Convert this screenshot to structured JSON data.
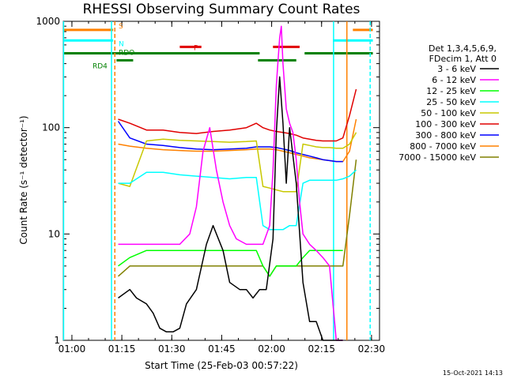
{
  "chart_data": {
    "type": "line",
    "title": "RHESSI Observing Summary Count Rates",
    "xlabel": "Start Time (25-Feb-03 00:57:22)",
    "ylabel": "Count Rate (s⁻¹ detector⁻¹)",
    "y_scale": "log",
    "ylim": [
      1,
      1000
    ],
    "xlim_minutes_after_start": [
      0,
      95
    ],
    "x_ticks": [
      {
        "label": "01:00",
        "minute": 2.6
      },
      {
        "label": "01:15",
        "minute": 17.6
      },
      {
        "label": "01:30",
        "minute": 32.6
      },
      {
        "label": "01:45",
        "minute": 47.6
      },
      {
        "label": "02:00",
        "minute": 62.6
      },
      {
        "label": "02:15",
        "minute": 77.6
      },
      {
        "label": "02:30",
        "minute": 92.6
      }
    ],
    "y_ticks": [
      "1",
      "10",
      "100",
      "1000"
    ],
    "legend_header": [
      "Det 1,3,4,5,6,9,",
      "FDecim 1, Att 0"
    ],
    "series": [
      {
        "name": "3 - 6 keV",
        "color": "#000000",
        "x": [
          16.5,
          20,
          22,
          25,
          27,
          29,
          31,
          33,
          35,
          37,
          40,
          43,
          45,
          48,
          50,
          53,
          55,
          57,
          59,
          61,
          63,
          64,
          65,
          66,
          67,
          68,
          70,
          72,
          74,
          76,
          78,
          80,
          82,
          84
        ],
        "y": [
          2.5,
          3,
          2.5,
          2.2,
          1.8,
          1.3,
          1.2,
          1.2,
          1.3,
          2.2,
          3,
          8,
          12,
          7,
          3.5,
          3,
          3,
          2.5,
          3,
          3,
          9,
          90,
          300,
          110,
          30,
          100,
          30,
          3.5,
          1.5,
          1.5,
          1,
          1,
          1,
          1
        ]
      },
      {
        "name": "6 - 12 keV",
        "color": "#ff00ff",
        "x": [
          16.5,
          20,
          25,
          30,
          35,
          38,
          40,
          42,
          44,
          46,
          48,
          50,
          52,
          55,
          58,
          60,
          62,
          63,
          64,
          65,
          65.5,
          66,
          67,
          68,
          69,
          70,
          71,
          72,
          74,
          76,
          78,
          80,
          82,
          84
        ],
        "y": [
          8,
          8,
          8,
          8,
          8,
          10,
          18,
          60,
          100,
          40,
          20,
          12,
          9,
          8,
          8,
          8,
          12,
          40,
          250,
          700,
          900,
          400,
          150,
          110,
          90,
          50,
          20,
          10,
          8,
          7,
          6,
          5,
          1,
          1
        ]
      },
      {
        "name": "12 - 25 keV",
        "color": "#00ff00",
        "x": [
          16.5,
          20,
          25,
          30,
          35,
          40,
          45,
          50,
          55,
          58,
          60,
          62,
          64,
          66,
          68,
          70,
          72,
          74,
          76,
          78,
          80,
          82,
          84
        ],
        "y": [
          5,
          6,
          7,
          7,
          7,
          7,
          7,
          7,
          7,
          7,
          5,
          4,
          5,
          5,
          5,
          5,
          6,
          7,
          7,
          7,
          7,
          7,
          7
        ]
      },
      {
        "name": "25 - 50 keV",
        "color": "#00ffff",
        "x": [
          16.5,
          20,
          25,
          30,
          35,
          40,
          45,
          50,
          55,
          58,
          60,
          62,
          64,
          66,
          68,
          70,
          72,
          74,
          76,
          78,
          80,
          82,
          84,
          86,
          88
        ],
        "y": [
          30,
          30,
          38,
          38,
          36,
          35,
          34,
          33,
          34,
          34,
          12,
          11,
          11,
          11,
          12,
          12,
          30,
          32,
          32,
          32,
          32,
          32,
          33,
          35,
          40
        ]
      },
      {
        "name": "50 - 100 keV",
        "color": "#c8c800",
        "x": [
          16.5,
          20,
          25,
          30,
          35,
          40,
          45,
          50,
          55,
          58,
          60,
          62,
          64,
          66,
          68,
          70,
          72,
          74,
          76,
          78,
          80,
          82,
          84,
          86,
          88
        ],
        "y": [
          30,
          28,
          75,
          78,
          76,
          75,
          74,
          73,
          74,
          75,
          28,
          27,
          26,
          25,
          25,
          25,
          70,
          68,
          66,
          65,
          65,
          64,
          64,
          70,
          90
        ]
      },
      {
        "name": "100 - 300 keV",
        "color": "#e00000",
        "x": [
          16.5,
          20,
          25,
          30,
          35,
          40,
          45,
          50,
          55,
          58,
          60,
          62,
          64,
          66,
          68,
          70,
          72,
          74,
          76,
          78,
          80,
          82,
          84,
          86,
          88
        ],
        "y": [
          120,
          110,
          95,
          95,
          90,
          88,
          92,
          95,
          100,
          110,
          100,
          95,
          92,
          90,
          88,
          85,
          80,
          78,
          76,
          75,
          75,
          75,
          80,
          130,
          230
        ]
      },
      {
        "name": "300 - 800 keV",
        "color": "#0000ff",
        "x": [
          16.5,
          20,
          25,
          30,
          35,
          40,
          45,
          50,
          55,
          58,
          60,
          62,
          64,
          66,
          68,
          70,
          72,
          74,
          76,
          78,
          80,
          82,
          84
        ],
        "y": [
          115,
          80,
          70,
          68,
          65,
          63,
          62,
          63,
          64,
          66,
          66,
          66,
          65,
          63,
          61,
          58,
          56,
          54,
          52,
          50,
          49,
          48,
          48
        ]
      },
      {
        "name": "800 - 7000 keV",
        "color": "#ff8000",
        "x": [
          16.5,
          20,
          25,
          30,
          35,
          40,
          45,
          50,
          55,
          58,
          60,
          62,
          64,
          66,
          68,
          70,
          72,
          74,
          76,
          78,
          80,
          82,
          84,
          86,
          88
        ],
        "y": [
          70,
          67,
          64,
          62,
          61,
          60,
          60,
          61,
          62,
          63,
          63,
          63,
          62,
          60,
          58,
          56,
          54,
          52,
          51,
          50,
          49,
          48,
          48,
          60,
          120
        ]
      },
      {
        "name": "7000 - 15000 keV",
        "color": "#808000",
        "x": [
          16.5,
          20,
          25,
          30,
          35,
          40,
          45,
          50,
          55,
          58,
          60,
          62,
          64,
          66,
          68,
          70,
          72,
          74,
          76,
          78,
          80,
          82,
          84,
          86,
          88
        ],
        "y": [
          4,
          5,
          5,
          5,
          5,
          5,
          5,
          5,
          5,
          5,
          5,
          4,
          5,
          5,
          5,
          5,
          5,
          5,
          5,
          5,
          5,
          5,
          5,
          15,
          50
        ]
      }
    ],
    "flag_bars": [
      {
        "label": "S",
        "color": "#ff8000",
        "y": 830,
        "segments": [
          [
            0,
            15
          ],
          [
            87,
            93
          ]
        ]
      },
      {
        "label": "N",
        "color": "#00ffff",
        "y": 660,
        "segments": [
          [
            0,
            15
          ],
          [
            81,
            93
          ]
        ]
      },
      {
        "label": "RDO",
        "color": "#008000",
        "y": 500,
        "segments": [
          [
            0,
            59
          ],
          [
            72.5,
            93
          ]
        ]
      },
      {
        "label": "RD4",
        "color": "#008000",
        "y": 430,
        "segments": [
          [
            16,
            21
          ],
          [
            58.5,
            70
          ]
        ]
      },
      {
        "label": "F",
        "color": "#e00000",
        "y": 575,
        "segments": [
          [
            35,
            41.5
          ],
          [
            63,
            71
          ]
        ]
      }
    ],
    "vertical_lines": [
      {
        "color": "#00ffff",
        "style": "solid",
        "minute": 0.1
      },
      {
        "color": "#00ffff",
        "style": "solid",
        "minute": 14.5
      },
      {
        "color": "#ff8000",
        "style": "dashed",
        "minute": 15.5
      },
      {
        "color": "#00ffff",
        "style": "solid",
        "minute": 81.2
      },
      {
        "color": "#ff8000",
        "style": "solid",
        "minute": 85.2
      },
      {
        "color": "#00ffff",
        "style": "dashed",
        "minute": 92.2
      }
    ],
    "grid": false,
    "legend_placement": "right"
  },
  "footer_timestamp": "15-Oct-2021 14:13"
}
